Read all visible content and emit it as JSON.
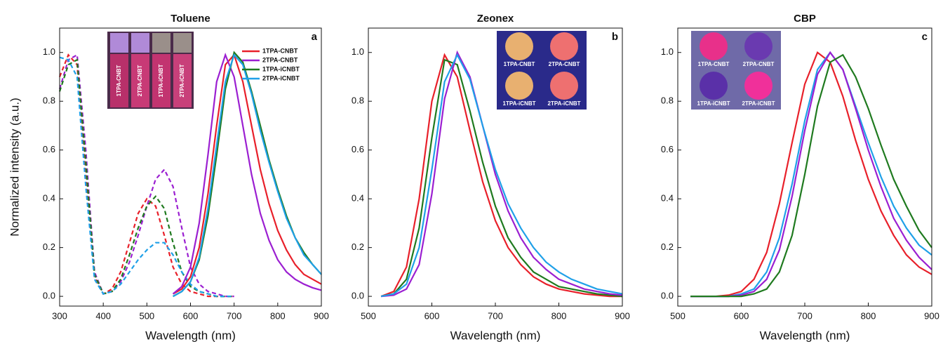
{
  "chart_data": [
    {
      "type": "line",
      "title": "Toluene",
      "panel_label": "a",
      "xlabel": "Wavelength (nm)",
      "ylabel": "Normalized intensity (a.u.)",
      "xlim": [
        300,
        900
      ],
      "ylim": [
        -0.04,
        1.1
      ],
      "xticks": [
        300,
        400,
        500,
        600,
        700,
        800,
        900
      ],
      "yticks": [
        {
          "value": 0,
          "label": "0.0"
        },
        0.2,
        0.4,
        0.6,
        0.8,
        {
          "value": 1,
          "label": "1.0"
        }
      ],
      "legend": "upper right",
      "inset_labels": [
        "1TPA-CNBT",
        "2TPA-CNBT",
        "1TPA-iCNBT",
        "2TPA-iCNBT"
      ],
      "x": [
        560,
        580,
        600,
        620,
        640,
        660,
        680,
        700,
        720,
        740,
        760,
        780,
        800,
        820,
        840,
        860,
        880,
        900
      ],
      "series": [
        {
          "name": "1TPA-CNBT",
          "color": "#e8202a",
          "values": [
            0.01,
            0.03,
            0.08,
            0.2,
            0.42,
            0.7,
            0.95,
            0.99,
            0.88,
            0.7,
            0.52,
            0.38,
            0.27,
            0.19,
            0.13,
            0.09,
            0.07,
            0.05
          ]
        },
        {
          "name": "2TPA-CNBT",
          "color": "#9b1fd1",
          "values": [
            0.01,
            0.04,
            0.12,
            0.3,
            0.58,
            0.88,
            0.99,
            0.9,
            0.7,
            0.5,
            0.34,
            0.23,
            0.15,
            0.1,
            0.07,
            0.05,
            0.035,
            0.025
          ]
        },
        {
          "name": "1TPA-iCNBT",
          "color": "#1f7a1f",
          "values": [
            0,
            0.02,
            0.06,
            0.15,
            0.33,
            0.58,
            0.85,
            1.0,
            0.96,
            0.84,
            0.7,
            0.56,
            0.44,
            0.33,
            0.24,
            0.18,
            0.13,
            0.09
          ]
        },
        {
          "name": "2TPA-iCNBT",
          "color": "#1fa0e8",
          "values": [
            0,
            0.02,
            0.06,
            0.16,
            0.36,
            0.62,
            0.88,
            0.99,
            0.95,
            0.83,
            0.68,
            0.55,
            0.43,
            0.32,
            0.24,
            0.17,
            0.13,
            0.09
          ]
        }
      ],
      "absorption": {
        "x": [
          300,
          320,
          340,
          360,
          380,
          400,
          420,
          440,
          460,
          480,
          500,
          520,
          540,
          560,
          580,
          600,
          620,
          640,
          660,
          680,
          700
        ],
        "series": [
          {
            "color": "#e8202a",
            "values": [
              0.9,
              0.99,
              0.95,
              0.5,
              0.08,
              0.01,
              0.03,
              0.1,
              0.22,
              0.34,
              0.4,
              0.37,
              0.25,
              0.12,
              0.05,
              0.02,
              0.01,
              0,
              0,
              0,
              0
            ]
          },
          {
            "color": "#9b1fd1",
            "values": [
              0.85,
              0.97,
              0.99,
              0.6,
              0.1,
              0.01,
              0.02,
              0.06,
              0.14,
              0.25,
              0.37,
              0.48,
              0.52,
              0.45,
              0.28,
              0.12,
              0.05,
              0.02,
              0.01,
              0,
              0
            ]
          },
          {
            "color": "#1f7a1f",
            "values": [
              0.84,
              0.95,
              0.97,
              0.55,
              0.09,
              0.01,
              0.02,
              0.07,
              0.17,
              0.28,
              0.37,
              0.41,
              0.36,
              0.22,
              0.1,
              0.04,
              0.02,
              0.01,
              0,
              0,
              0
            ]
          },
          {
            "color": "#1fa0e8",
            "values": [
              0.98,
              0.97,
              0.9,
              0.45,
              0.07,
              0.01,
              0.02,
              0.05,
              0.1,
              0.15,
              0.19,
              0.22,
              0.22,
              0.17,
              0.1,
              0.05,
              0.02,
              0.01,
              0,
              0,
              0
            ]
          }
        ]
      }
    },
    {
      "type": "line",
      "title": "Zeonex",
      "panel_label": "b",
      "xlabel": "Wavelength (nm)",
      "xlim": [
        500,
        900
      ],
      "ylim": [
        -0.04,
        1.1
      ],
      "xticks": [
        500,
        600,
        700,
        800,
        900
      ],
      "yticks": [
        {
          "value": 0,
          "label": "0.0"
        },
        0.2,
        0.4,
        0.6,
        0.8,
        {
          "value": 1,
          "label": "1.0"
        }
      ],
      "inset_labels": [
        "1TPA-CNBT",
        "2TPA-CNBT",
        "1TPA-iCNBT",
        "2TPA-iCNBT"
      ],
      "x": [
        520,
        540,
        560,
        580,
        600,
        620,
        640,
        660,
        680,
        700,
        720,
        740,
        760,
        780,
        800,
        820,
        840,
        860,
        880,
        900
      ],
      "series": [
        {
          "color": "#e8202a",
          "values": [
            0,
            0.02,
            0.12,
            0.4,
            0.8,
            0.99,
            0.9,
            0.68,
            0.47,
            0.31,
            0.2,
            0.13,
            0.08,
            0.05,
            0.03,
            0.02,
            0.01,
            0.005,
            0,
            0
          ]
        },
        {
          "color": "#1f7a1f",
          "values": [
            0,
            0.01,
            0.07,
            0.28,
            0.65,
            0.97,
            0.95,
            0.76,
            0.55,
            0.37,
            0.24,
            0.16,
            0.1,
            0.07,
            0.04,
            0.03,
            0.02,
            0.01,
            0.005,
            0
          ]
        },
        {
          "color": "#9b1fd1",
          "values": [
            0,
            0.005,
            0.03,
            0.13,
            0.42,
            0.81,
            1.0,
            0.9,
            0.7,
            0.5,
            0.35,
            0.24,
            0.16,
            0.11,
            0.07,
            0.05,
            0.03,
            0.02,
            0.01,
            0.005
          ]
        },
        {
          "color": "#1fa0e8",
          "values": [
            0,
            0.01,
            0.05,
            0.2,
            0.52,
            0.88,
            0.99,
            0.89,
            0.7,
            0.52,
            0.38,
            0.28,
            0.2,
            0.14,
            0.1,
            0.07,
            0.05,
            0.03,
            0.02,
            0.01
          ]
        }
      ]
    },
    {
      "type": "line",
      "title": "CBP",
      "panel_label": "c",
      "xlabel": "Wavelength (nm)",
      "xlim": [
        500,
        900
      ],
      "ylim": [
        -0.04,
        1.1
      ],
      "xticks": [
        500,
        600,
        700,
        800,
        900
      ],
      "yticks": [
        {
          "value": 0,
          "label": "0.0"
        },
        0.2,
        0.4,
        0.6,
        0.8,
        {
          "value": 1,
          "label": "1.0"
        }
      ],
      "inset_labels": [
        "1TPA-CNBT",
        "2TPA-CNBT",
        "1TPA-iCNBT",
        "2TPA-iCNBT"
      ],
      "x": [
        520,
        540,
        560,
        580,
        600,
        620,
        640,
        660,
        680,
        700,
        720,
        740,
        760,
        780,
        800,
        820,
        840,
        860,
        880,
        900
      ],
      "series": [
        {
          "color": "#e8202a",
          "values": [
            0,
            0,
            0,
            0.005,
            0.02,
            0.07,
            0.18,
            0.38,
            0.63,
            0.87,
            1.0,
            0.96,
            0.82,
            0.64,
            0.48,
            0.35,
            0.25,
            0.17,
            0.12,
            0.09
          ]
        },
        {
          "color": "#1fa0e8",
          "values": [
            0,
            0,
            0,
            0,
            0.01,
            0.03,
            0.1,
            0.24,
            0.46,
            0.72,
            0.93,
            1.0,
            0.93,
            0.78,
            0.63,
            0.49,
            0.37,
            0.28,
            0.21,
            0.17
          ]
        },
        {
          "color": "#9b1fd1",
          "values": [
            0,
            0,
            0,
            0,
            0.005,
            0.02,
            0.07,
            0.19,
            0.41,
            0.68,
            0.91,
            1.0,
            0.93,
            0.77,
            0.6,
            0.45,
            0.32,
            0.23,
            0.16,
            0.11
          ]
        },
        {
          "color": "#1f7a1f",
          "values": [
            0,
            0,
            0,
            0,
            0,
            0.01,
            0.03,
            0.1,
            0.25,
            0.5,
            0.78,
            0.96,
            0.99,
            0.9,
            0.77,
            0.62,
            0.48,
            0.37,
            0.27,
            0.2
          ]
        }
      ]
    }
  ]
}
